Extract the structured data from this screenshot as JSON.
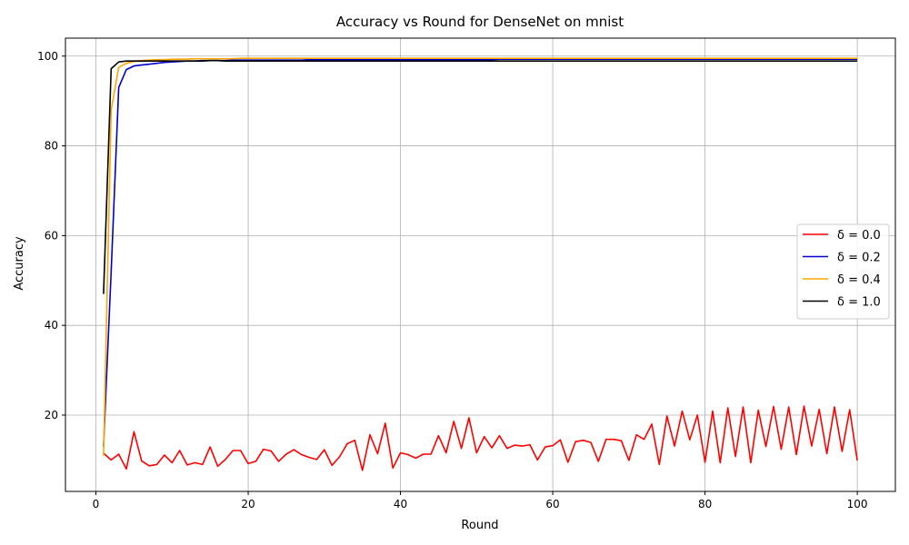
{
  "chart_data": {
    "type": "line",
    "title": "Accuracy vs Round for DenseNet on mnist",
    "xlabel": "Round",
    "ylabel": "Accuracy",
    "xlim": [
      -4,
      105
    ],
    "ylim": [
      3,
      104
    ],
    "xticks": [
      0,
      20,
      40,
      60,
      80,
      100
    ],
    "yticks": [
      20,
      40,
      60,
      80,
      100
    ],
    "grid": true,
    "legend_position": "center-right",
    "series": [
      {
        "name": "δ = 0.0",
        "color": "#ff0000",
        "x": [
          1,
          2,
          3,
          4,
          5,
          6,
          7,
          8,
          9,
          10,
          11,
          12,
          13,
          14,
          15,
          16,
          17,
          18,
          19,
          20,
          21,
          22,
          23,
          24,
          25,
          26,
          27,
          28,
          29,
          30,
          31,
          32,
          33,
          34,
          35,
          36,
          37,
          38,
          39,
          40,
          41,
          42,
          43,
          44,
          45,
          46,
          47,
          48,
          49,
          50,
          51,
          52,
          53,
          54,
          55,
          56,
          57,
          58,
          59,
          60,
          61,
          62,
          63,
          64,
          65,
          66,
          67,
          68,
          69,
          70,
          71,
          72,
          73,
          74,
          75,
          76,
          77,
          78,
          79,
          80,
          81,
          82,
          83,
          84,
          85,
          86,
          87,
          88,
          89,
          90,
          91,
          92,
          93,
          94,
          95,
          96,
          97,
          98,
          99,
          100
        ],
        "values": [
          11.5,
          10.0,
          11.3,
          8.0,
          16.3,
          9.8,
          8.7,
          9.0,
          11.1,
          9.4,
          12.1,
          8.9,
          9.4,
          9.0,
          12.9,
          8.6,
          10.1,
          12.1,
          12.1,
          9.2,
          9.7,
          12.4,
          12.0,
          9.7,
          11.3,
          12.3,
          11.2,
          10.6,
          10.1,
          12.3,
          8.8,
          10.7,
          13.6,
          14.4,
          7.7,
          15.6,
          11.4,
          18.2,
          8.2,
          11.6,
          11.2,
          10.4,
          11.3,
          11.3,
          15.4,
          11.6,
          18.6,
          12.6,
          19.4,
          11.6,
          15.2,
          12.7,
          15.4,
          12.6,
          13.3,
          13.1,
          13.4,
          10.0,
          12.9,
          13.2,
          14.5,
          9.5,
          14.1,
          14.4,
          13.9,
          9.7,
          14.6,
          14.6,
          14.3,
          9.9,
          15.6,
          14.6,
          18.0,
          9.0,
          19.8,
          13.1,
          20.9,
          14.5,
          20.0,
          9.5,
          20.9,
          9.4,
          21.6,
          10.8,
          21.8,
          9.4,
          21.1,
          13.0,
          21.9,
          12.4,
          21.8,
          11.2,
          22.0,
          13.1,
          21.3,
          11.4,
          21.8,
          11.9,
          21.2,
          9.9
        ]
      },
      {
        "name": "δ = 0.2",
        "color": "#0000cc",
        "x": [
          1,
          2,
          3,
          4,
          5,
          6,
          7,
          8,
          9,
          10,
          11,
          12,
          13,
          14,
          15,
          16,
          17,
          18,
          19,
          20,
          21,
          22,
          23,
          24,
          25,
          26,
          27,
          28,
          29,
          30,
          31,
          32,
          33,
          34,
          35,
          36,
          37,
          38,
          39,
          40,
          41,
          42,
          43,
          44,
          45,
          46,
          47,
          48,
          49,
          50,
          51,
          52,
          53,
          54,
          55,
          56,
          57,
          58,
          59,
          60,
          61,
          62,
          63,
          64,
          65,
          66,
          67,
          68,
          69,
          70,
          71,
          72,
          73,
          74,
          75,
          76,
          77,
          78,
          79,
          80,
          81,
          82,
          83,
          84,
          85,
          86,
          87,
          88,
          89,
          90,
          91,
          92,
          93,
          94,
          95,
          96,
          97,
          98,
          99,
          100
        ],
        "values": [
          13.0,
          52.0,
          93.0,
          97.0,
          97.8,
          98.0,
          98.2,
          98.4,
          98.6,
          98.7,
          98.8,
          98.9,
          98.9,
          99.0,
          99.0,
          99.0,
          99.0,
          99.1,
          99.1,
          99.1,
          99.1,
          99.1,
          99.1,
          99.1,
          99.1,
          99.1,
          99.1,
          99.2,
          99.2,
          99.2,
          99.2,
          99.2,
          99.2,
          99.2,
          99.2,
          99.2,
          99.2,
          99.2,
          99.2,
          99.2,
          99.2,
          99.2,
          99.2,
          99.2,
          99.2,
          99.2,
          99.2,
          99.2,
          99.2,
          99.2,
          99.2,
          99.2,
          99.3,
          99.3,
          99.3,
          99.3,
          99.3,
          99.3,
          99.3,
          99.3,
          99.3,
          99.3,
          99.3,
          99.3,
          99.3,
          99.3,
          99.3,
          99.3,
          99.3,
          99.3,
          99.3,
          99.3,
          99.3,
          99.3,
          99.3,
          99.3,
          99.3,
          99.3,
          99.3,
          99.3,
          99.3,
          99.3,
          99.3,
          99.3,
          99.3,
          99.3,
          99.3,
          99.3,
          99.3,
          99.3,
          99.3,
          99.3,
          99.3,
          99.3,
          99.3,
          99.3,
          99.3,
          99.3,
          99.3,
          99.3
        ]
      },
      {
        "name": "δ = 0.4",
        "color": "#ffa500",
        "x": [
          1,
          2,
          3,
          4,
          5,
          6,
          7,
          8,
          9,
          10,
          11,
          12,
          13,
          14,
          15,
          16,
          17,
          18,
          19,
          20,
          21,
          22,
          23,
          24,
          25,
          26,
          27,
          28,
          29,
          30,
          31,
          32,
          33,
          34,
          35,
          36,
          37,
          38,
          39,
          40,
          41,
          42,
          43,
          44,
          45,
          46,
          47,
          48,
          49,
          50,
          51,
          52,
          53,
          54,
          55,
          56,
          57,
          58,
          59,
          60,
          61,
          62,
          63,
          64,
          65,
          66,
          67,
          68,
          69,
          70,
          71,
          72,
          73,
          74,
          75,
          76,
          77,
          78,
          79,
          80,
          81,
          82,
          83,
          84,
          85,
          86,
          87,
          88,
          89,
          90,
          91,
          92,
          93,
          94,
          95,
          96,
          97,
          98,
          99,
          100
        ],
        "values": [
          11.0,
          88.0,
          97.5,
          98.4,
          98.8,
          99.0,
          99.1,
          99.2,
          99.2,
          99.3,
          99.3,
          99.3,
          99.4,
          99.4,
          99.4,
          99.4,
          99.4,
          99.4,
          99.5,
          99.5,
          99.5,
          99.5,
          99.5,
          99.5,
          99.5,
          99.5,
          99.5,
          99.5,
          99.5,
          99.5,
          99.5,
          99.5,
          99.5,
          99.5,
          99.5,
          99.5,
          99.5,
          99.5,
          99.5,
          99.5,
          99.5,
          99.5,
          99.5,
          99.5,
          99.5,
          99.5,
          99.5,
          99.5,
          99.5,
          99.5,
          99.5,
          99.5,
          99.5,
          99.5,
          99.5,
          99.5,
          99.5,
          99.5,
          99.5,
          99.5,
          99.5,
          99.5,
          99.5,
          99.5,
          99.5,
          99.5,
          99.5,
          99.5,
          99.5,
          99.5,
          99.5,
          99.5,
          99.5,
          99.5,
          99.5,
          99.5,
          99.5,
          99.5,
          99.5,
          99.5,
          99.5,
          99.5,
          99.5,
          99.5,
          99.5,
          99.5,
          99.5,
          99.5,
          99.5,
          99.5,
          99.5,
          99.5,
          99.5,
          99.5,
          99.5,
          99.5,
          99.5,
          99.5,
          99.5,
          99.5
        ]
      },
      {
        "name": "δ = 1.0",
        "color": "#000000",
        "x": [
          1,
          2,
          3,
          4,
          5,
          6,
          7,
          8,
          9,
          10,
          11,
          12,
          13,
          14,
          15,
          16,
          17,
          18,
          19,
          20,
          21,
          22,
          23,
          24,
          25,
          26,
          27,
          28,
          29,
          30,
          31,
          32,
          33,
          34,
          35,
          36,
          37,
          38,
          39,
          40,
          41,
          42,
          43,
          44,
          45,
          46,
          47,
          48,
          49,
          50,
          51,
          52,
          53,
          54,
          55,
          56,
          57,
          58,
          59,
          60,
          61,
          62,
          63,
          64,
          65,
          66,
          67,
          68,
          69,
          70,
          71,
          72,
          73,
          74,
          75,
          76,
          77,
          78,
          79,
          80,
          81,
          82,
          83,
          84,
          85,
          86,
          87,
          88,
          89,
          90,
          91,
          92,
          93,
          94,
          95,
          96,
          97,
          98,
          99,
          100
        ],
        "values": [
          47.0,
          97.2,
          98.7,
          98.9,
          98.9,
          98.9,
          98.9,
          98.9,
          98.9,
          98.9,
          98.9,
          98.9,
          98.9,
          98.9,
          99.0,
          99.0,
          98.9,
          98.9,
          98.9,
          98.9,
          98.9,
          98.9,
          98.9,
          98.9,
          98.9,
          98.9,
          98.9,
          98.9,
          98.9,
          98.9,
          98.9,
          98.9,
          98.9,
          98.9,
          98.9,
          98.9,
          98.9,
          98.9,
          98.9,
          98.9,
          98.9,
          98.9,
          98.9,
          98.9,
          98.9,
          98.9,
          98.9,
          98.9,
          98.9,
          98.9,
          98.9,
          98.9,
          98.9,
          98.9,
          98.9,
          98.9,
          98.9,
          98.9,
          98.9,
          98.9,
          98.9,
          98.9,
          98.9,
          98.9,
          98.9,
          98.9,
          98.9,
          98.9,
          98.9,
          98.9,
          98.9,
          98.9,
          98.9,
          98.9,
          98.9,
          98.9,
          98.9,
          98.9,
          98.9,
          98.9,
          98.9,
          98.9,
          98.9,
          98.9,
          98.9,
          98.9,
          98.9,
          98.9,
          98.9,
          98.9,
          98.9,
          98.9,
          98.9,
          98.9,
          98.9,
          98.9,
          98.9,
          98.9,
          98.9,
          98.9
        ]
      }
    ]
  }
}
